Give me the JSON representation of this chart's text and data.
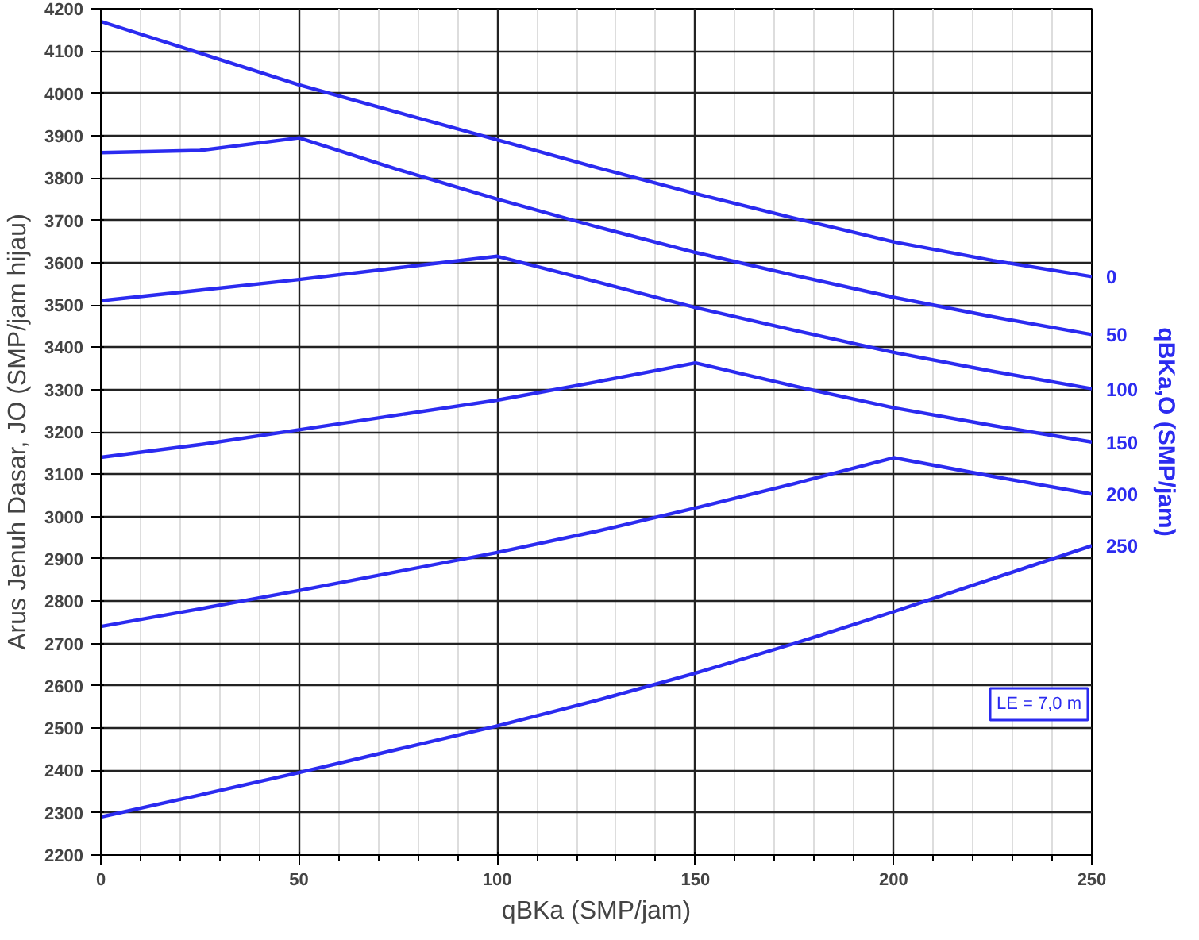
{
  "chart_data": {
    "type": "line",
    "xlabel": "qBKa (SMP/jam)",
    "ylabel": "Arus Jenuh Dasar, JO (SMP/jam hijau)",
    "y2label": "qBKa,O (SMP/jam)",
    "x": [
      0,
      25,
      50,
      75,
      100,
      125,
      150,
      175,
      200,
      225,
      250
    ],
    "xlim": [
      0,
      250
    ],
    "xticks": [
      0,
      50,
      100,
      150,
      200,
      250
    ],
    "ylim": [
      2200,
      4200
    ],
    "yticks": [
      2200,
      2300,
      2400,
      2500,
      2600,
      2700,
      2800,
      2900,
      3000,
      3100,
      3200,
      3300,
      3400,
      3500,
      3600,
      3700,
      3800,
      3900,
      4000,
      4100,
      4200
    ],
    "grid": true,
    "line_style": "solid",
    "marker": "none",
    "annotations": [
      "LE = 7,0 m"
    ],
    "series": [
      {
        "name": "0",
        "color": "#2b2bf0",
        "values": [
          4170,
          4095,
          4020,
          3955,
          3890,
          3825,
          3763,
          3705,
          3649,
          3605,
          3567
        ]
      },
      {
        "name": "50",
        "color": "#2b2bf0",
        "values": [
          3860,
          3865,
          3895,
          3820,
          3750,
          3685,
          3624,
          3570,
          3518,
          3472,
          3430
        ]
      },
      {
        "name": "100",
        "color": "#2b2bf0",
        "values": [
          3510,
          3535,
          3560,
          3588,
          3615,
          3555,
          3494,
          3440,
          3388,
          3343,
          3302
        ]
      },
      {
        "name": "150",
        "color": "#2b2bf0",
        "values": [
          3140,
          3170,
          3205,
          3240,
          3275,
          3318,
          3363,
          3308,
          3257,
          3215,
          3176
        ]
      },
      {
        "name": "200",
        "color": "#2b2bf0",
        "values": [
          2740,
          2782,
          2825,
          2870,
          2915,
          2965,
          3020,
          3078,
          3139,
          3095,
          3053
        ]
      },
      {
        "name": "250",
        "color": "#2b2bf0",
        "values": [
          2290,
          2342,
          2395,
          2450,
          2505,
          2565,
          2630,
          2700,
          2775,
          2853,
          2931
        ]
      }
    ]
  }
}
